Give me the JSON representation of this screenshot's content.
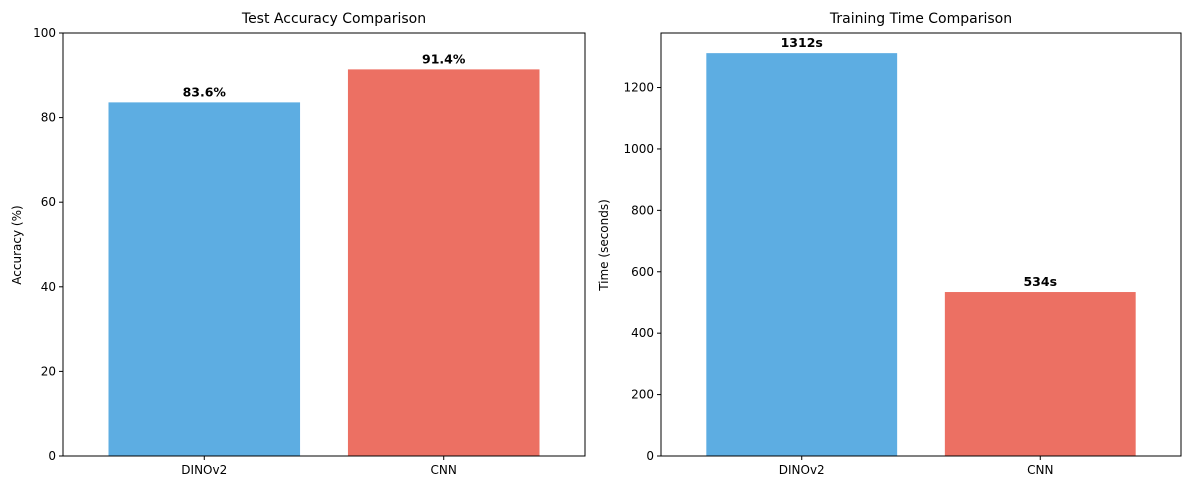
{
  "chart_data": [
    {
      "type": "bar",
      "title": "Test Accuracy Comparison",
      "xlabel": "",
      "ylabel": "Accuracy (%)",
      "categories": [
        "DINOv2",
        "CNN"
      ],
      "values": [
        83.6,
        91.4
      ],
      "data_labels": [
        "83.6%",
        "91.4%"
      ],
      "colors": [
        "#5dade2",
        "#ec7063"
      ],
      "ylim": [
        0,
        100
      ],
      "yticks": [
        0,
        20,
        40,
        60,
        80,
        100
      ],
      "ytick_labels": [
        "0",
        "20",
        "40",
        "60",
        "80",
        "100"
      ],
      "grid": false,
      "legend": "none"
    },
    {
      "type": "bar",
      "title": "Training Time Comparison",
      "xlabel": "",
      "ylabel": "Time (seconds)",
      "categories": [
        "DINOv2",
        "CNN"
      ],
      "values": [
        1312,
        534
      ],
      "data_labels": [
        "1312s",
        "534s"
      ],
      "colors": [
        "#5dade2",
        "#ec7063"
      ],
      "ylim": [
        0,
        1377.6
      ],
      "yticks": [
        0,
        200,
        400,
        600,
        800,
        1000,
        1200
      ],
      "ytick_labels": [
        "0",
        "200",
        "400",
        "600",
        "800",
        "1000",
        "1200"
      ],
      "grid": false,
      "legend": "none"
    }
  ]
}
